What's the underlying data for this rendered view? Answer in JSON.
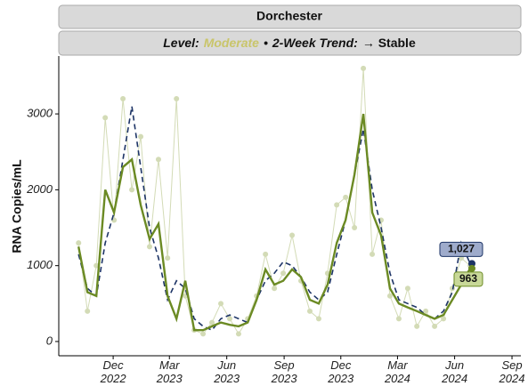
{
  "chart_data": {
    "type": "line",
    "title": "Dorchester",
    "subtitle_parts": [
      {
        "text": "Level:",
        "color": "#111111"
      },
      {
        "text": "Moderate",
        "color": "#c9c56a"
      },
      {
        "text": "•",
        "color": "#111111"
      },
      {
        "text": "2-Week Trend:",
        "color": "#111111"
      },
      {
        "text": "→ Stable",
        "color": "#111111"
      }
    ],
    "y_label": "RNA Copies/mL",
    "x": [
      2022.763,
      2022.802,
      2022.841,
      2022.88,
      2022.919,
      2022.958,
      2022.997,
      2023.036,
      2023.075,
      2023.114,
      2023.154,
      2023.193,
      2023.232,
      2023.271,
      2023.31,
      2023.349,
      2023.388,
      2023.427,
      2023.466,
      2023.506,
      2023.545,
      2023.584,
      2023.623,
      2023.662,
      2023.701,
      2023.74,
      2023.779,
      2023.818,
      2023.857,
      2023.897,
      2023.936,
      2023.975,
      2024.014,
      2024.053,
      2024.092,
      2024.131,
      2024.17,
      2024.209,
      2024.249,
      2024.288,
      2024.327,
      2024.366,
      2024.405,
      2024.444,
      2024.483
    ],
    "series": [
      {
        "style": "points",
        "color": "#d3dbb6",
        "values": [
          1300,
          400,
          1000,
          2950,
          1600,
          3200,
          2000,
          2700,
          1250,
          2400,
          1100,
          3200,
          600,
          150,
          100,
          250,
          500,
          300,
          100,
          300,
          600,
          1150,
          700,
          900,
          1400,
          800,
          400,
          300,
          900,
          1800,
          1900,
          1500,
          3600,
          1150,
          1600,
          600,
          300,
          700,
          200,
          400,
          200,
          300,
          700,
          1100,
          1000
        ]
      },
      {
        "style": "dashed",
        "color": "#1d3466",
        "end_label": "1,027",
        "end_label_fill": "#9eabcb",
        "values": [
          1150,
          700,
          600,
          1300,
          1700,
          2400,
          3100,
          2300,
          1500,
          1100,
          550,
          800,
          700,
          300,
          200,
          150,
          300,
          350,
          300,
          250,
          550,
          800,
          900,
          1050,
          1000,
          850,
          650,
          550,
          650,
          1150,
          1600,
          2200,
          2800,
          2000,
          1500,
          900,
          550,
          500,
          450,
          350,
          300,
          400,
          650,
          1300,
          1027
        ]
      },
      {
        "style": "solid",
        "color": "#6b8a23",
        "end_label": "963",
        "end_label_fill": "#c8d898",
        "values": [
          1250,
          650,
          600,
          2000,
          1700,
          2300,
          2400,
          1800,
          1350,
          1550,
          600,
          300,
          800,
          150,
          150,
          200,
          250,
          220,
          200,
          250,
          550,
          950,
          750,
          800,
          950,
          850,
          550,
          500,
          750,
          1300,
          1600,
          2200,
          3000,
          1700,
          1400,
          700,
          500,
          450,
          400,
          350,
          300,
          350,
          550,
          750,
          963
        ]
      }
    ],
    "xlim": [
      2022.676,
      2024.706
    ],
    "ylim": [
      -188,
      3763
    ],
    "yticks": [
      0,
      1000,
      2000,
      3000
    ],
    "xticks": [
      {
        "value": 2022.915,
        "label": "Dec\n2022"
      },
      {
        "value": 2023.162,
        "label": "Mar\n2023"
      },
      {
        "value": 2023.414,
        "label": "Jun\n2023"
      },
      {
        "value": 2023.666,
        "label": "Sep\n2023"
      },
      {
        "value": 2023.915,
        "label": "Dec\n2023"
      },
      {
        "value": 2024.164,
        "label": "Mar\n2024"
      },
      {
        "value": 2024.415,
        "label": "Jun\n2024"
      },
      {
        "value": 2024.667,
        "label": "Sep\n2024"
      }
    ],
    "grid": false
  }
}
